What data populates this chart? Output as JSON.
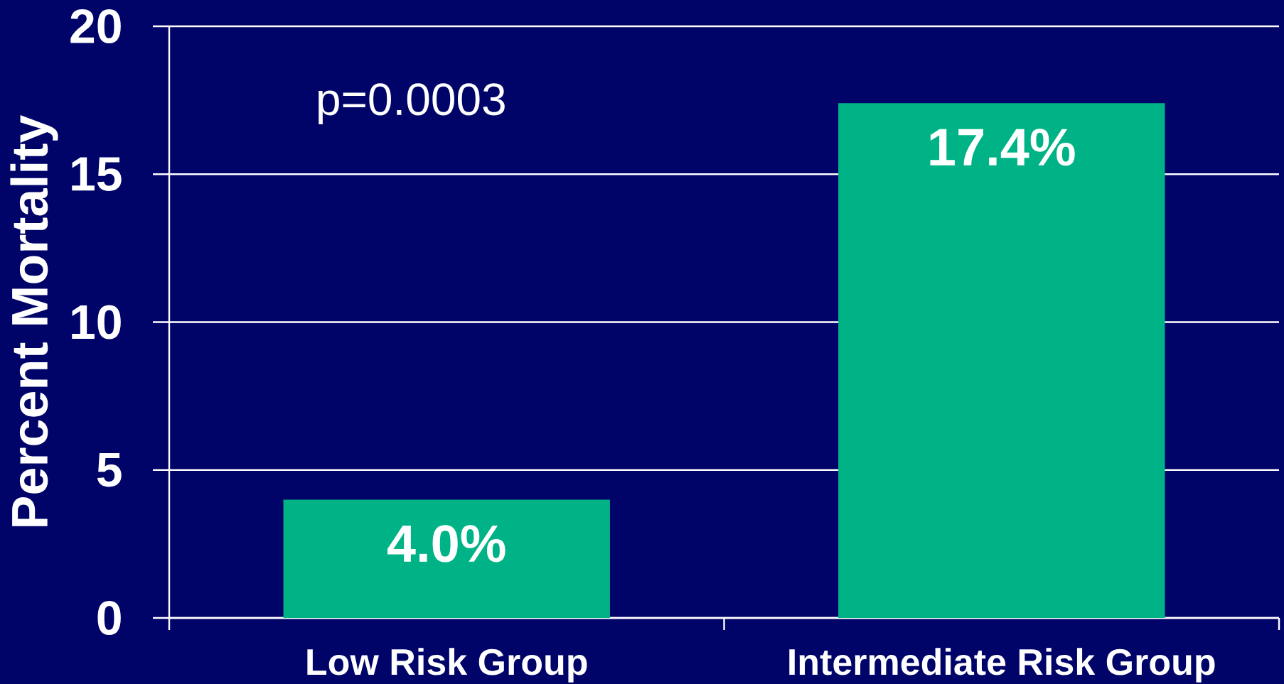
{
  "chart_data": {
    "type": "bar",
    "ylabel": "Percent Mortality",
    "categories": [
      "Low Risk Group",
      "Intermediate Risk Group"
    ],
    "values": [
      4.0,
      17.4
    ],
    "value_labels": [
      "4.0%",
      "17.4%"
    ],
    "color": "#00b386",
    "ylim": [
      0,
      20
    ],
    "yticks": [
      0,
      5,
      10,
      15,
      20
    ],
    "grid": "y",
    "annotations": [
      "p=0.0003"
    ]
  }
}
